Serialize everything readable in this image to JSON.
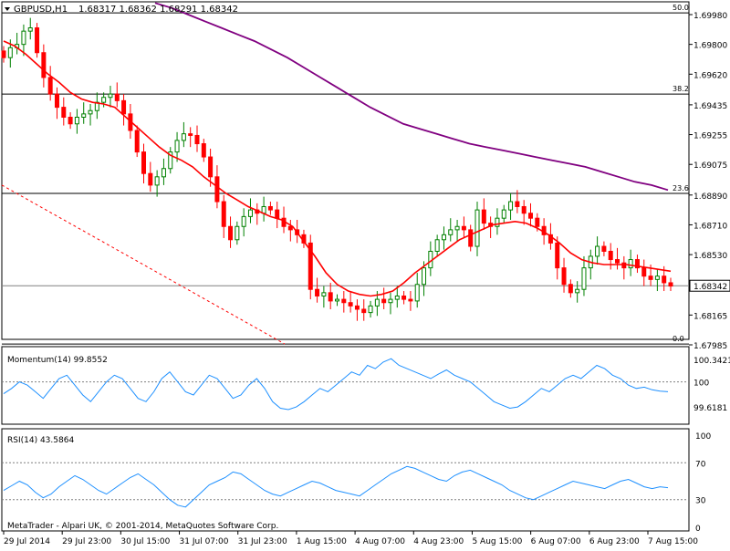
{
  "chart_data": [
    {
      "type": "candlestick",
      "symbol_header": "GBPUSD,H1",
      "ohlc_header": "1.68317 1.68362 1.68291 1.68342",
      "ylim": [
        1.67985,
        1.6998
      ],
      "y_ticks": [
        "1.69980",
        "1.69800",
        "1.69620",
        "1.69435",
        "1.69255",
        "1.69075",
        "1.68890",
        "1.68710",
        "1.68530",
        "1.68345",
        "1.68165",
        "1.67985"
      ],
      "current_price": "1.68342",
      "x_ticks": [
        "29 Jul 2014",
        "29 Jul 23:00",
        "30 Jul 15:00",
        "31 Jul 07:00",
        "31 Jul 23:00",
        "1 Aug 15:00",
        "4 Aug 07:00",
        "4 Aug 23:00",
        "5 Aug 15:00",
        "6 Aug 07:00",
        "6 Aug 23:00",
        "7 Aug 15:00"
      ],
      "fib_levels": [
        {
          "label": "50.0",
          "price": 1.6999
        },
        {
          "label": "38.2",
          "price": 1.695
        },
        {
          "label": "23.6",
          "price": 1.689
        },
        {
          "label": "0.0",
          "price": 1.6799
        }
      ],
      "close_series": [
        1.6972,
        1.6978,
        1.698,
        1.6988,
        1.699,
        1.6975,
        1.696,
        1.695,
        1.6942,
        1.6936,
        1.6932,
        1.6936,
        1.6938,
        1.694,
        1.6945,
        1.6948,
        1.695,
        1.6946,
        1.6938,
        1.6928,
        1.6915,
        1.6902,
        1.6895,
        1.69,
        1.6905,
        1.6915,
        1.6922,
        1.6926,
        1.6925,
        1.692,
        1.6912,
        1.69,
        1.6885,
        1.687,
        1.6862,
        1.687,
        1.6876,
        1.688,
        1.6878,
        1.6882,
        1.688,
        1.6875,
        1.687,
        1.6868,
        1.6865,
        1.686,
        1.6832,
        1.6828,
        1.683,
        1.6825,
        1.6826,
        1.6824,
        1.6822,
        1.682,
        1.6818,
        1.6822,
        1.6826,
        1.6824,
        1.6826,
        1.6828,
        1.6826,
        1.6825,
        1.6835,
        1.6845,
        1.6855,
        1.6862,
        1.6865,
        1.6868,
        1.687,
        1.6868,
        1.6858,
        1.688,
        1.6872,
        1.687,
        1.6875,
        1.688,
        1.6885,
        1.6882,
        1.6878,
        1.6875,
        1.687,
        1.6865,
        1.686,
        1.6845,
        1.6835,
        1.683,
        1.6832,
        1.6845,
        1.6852,
        1.6858,
        1.6855,
        1.685,
        1.6848,
        1.6845,
        1.685,
        1.6845,
        1.684,
        1.6838,
        1.684,
        1.6836,
        1.6834
      ],
      "ema_series": [
        1.6982,
        1.6979,
        1.6974,
        1.6968,
        1.6962,
        1.6957,
        1.6951,
        1.6947,
        1.6945,
        1.6944,
        1.6942,
        1.6936,
        1.693,
        1.6924,
        1.6918,
        1.6913,
        1.691,
        1.6906,
        1.69,
        1.6895,
        1.689,
        1.6886,
        1.6882,
        1.6879,
        1.6876,
        1.6874,
        1.687,
        1.6861,
        1.6852,
        1.6842,
        1.6835,
        1.6831,
        1.6829,
        1.6828,
        1.6829,
        1.6831,
        1.6836,
        1.6842,
        1.6847,
        1.6852,
        1.6857,
        1.6862,
        1.6865,
        1.6868,
        1.6871,
        1.6872,
        1.6873,
        1.6872,
        1.6869,
        1.6865,
        1.686,
        1.6854,
        1.685,
        1.6848,
        1.6847,
        1.6847,
        1.6847,
        1.6846,
        1.6845,
        1.6844,
        1.6843
      ],
      "sma_series": [
        1.7005,
        1.7002,
        1.6998,
        1.6994,
        1.699,
        1.6986,
        1.6982,
        1.6977,
        1.6972,
        1.6966,
        1.696,
        1.6954,
        1.6948,
        1.6942,
        1.6937,
        1.6932,
        1.6929,
        1.6926,
        1.6923,
        1.692,
        1.6918,
        1.6916,
        1.6914,
        1.6912,
        1.691,
        1.6908,
        1.6906,
        1.6903,
        1.69,
        1.6897,
        1.6895,
        1.6892
      ]
    },
    {
      "type": "line",
      "title": "Momentum(14) 99.8552",
      "y_ticks": [
        "100.3421",
        "100",
        "99.6181"
      ],
      "ylim": [
        99.4,
        100.45
      ],
      "values": [
        99.82,
        99.9,
        100.0,
        99.95,
        99.85,
        99.75,
        99.9,
        100.05,
        100.1,
        99.95,
        99.8,
        99.7,
        99.85,
        100.0,
        100.1,
        100.05,
        99.9,
        99.75,
        99.7,
        99.85,
        100.05,
        100.15,
        100.0,
        99.85,
        99.8,
        99.95,
        100.1,
        100.05,
        99.9,
        99.75,
        99.8,
        99.95,
        100.05,
        99.9,
        99.7,
        99.6,
        99.58,
        99.62,
        99.7,
        99.8,
        99.9,
        99.85,
        99.95,
        100.05,
        100.15,
        100.1,
        100.25,
        100.2,
        100.3,
        100.35,
        100.25,
        100.2,
        100.15,
        100.1,
        100.05,
        100.12,
        100.18,
        100.1,
        100.05,
        100.0,
        99.9,
        99.8,
        99.7,
        99.65,
        99.6,
        99.62,
        99.7,
        99.8,
        99.9,
        99.85,
        99.95,
        100.05,
        100.1,
        100.05,
        100.15,
        100.25,
        100.2,
        100.1,
        100.05,
        99.95,
        99.9,
        99.92,
        99.88,
        99.86,
        99.85
      ],
      "ref_level": 100
    },
    {
      "type": "line",
      "title": "RSI(14) 43.5864",
      "y_ticks": [
        "100",
        "70",
        "30",
        "0"
      ],
      "ylim": [
        0,
        100
      ],
      "values": [
        40,
        45,
        50,
        46,
        38,
        32,
        36,
        44,
        50,
        56,
        52,
        46,
        40,
        36,
        42,
        48,
        54,
        58,
        52,
        46,
        38,
        30,
        24,
        22,
        30,
        38,
        46,
        50,
        54,
        60,
        58,
        52,
        46,
        40,
        36,
        34,
        38,
        42,
        46,
        50,
        48,
        44,
        40,
        38,
        36,
        34,
        40,
        46,
        52,
        58,
        62,
        66,
        64,
        60,
        56,
        52,
        50,
        56,
        60,
        62,
        58,
        54,
        50,
        46,
        40,
        36,
        32,
        30,
        34,
        38,
        42,
        46,
        50,
        48,
        46,
        44,
        42,
        46,
        50,
        52,
        48,
        44,
        42,
        44,
        43
      ],
      "ref_levels": [
        70,
        30
      ]
    }
  ],
  "footer": "MetaTrader - Alpari UK, © 2001-2014, MetaQuotes Software Corp.",
  "colors": {
    "bull": "#008000",
    "bear": "#ff0000",
    "ema": "#ff0000",
    "sma": "#800080",
    "indicator": "#1e90ff",
    "trend": "#ff0000"
  }
}
